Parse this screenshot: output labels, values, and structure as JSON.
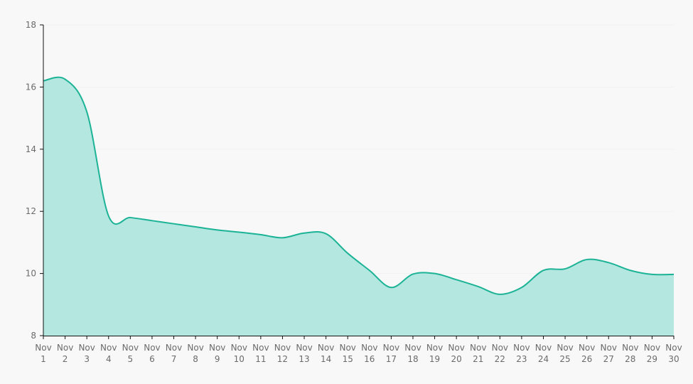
{
  "chart_data": {
    "type": "area",
    "title": "",
    "xlabel": "",
    "ylabel": "",
    "categories": [
      "Nov 1",
      "Nov 2",
      "Nov 3",
      "Nov 4",
      "Nov 5",
      "Nov 6",
      "Nov 7",
      "Nov 8",
      "Nov 9",
      "Nov 10",
      "Nov 11",
      "Nov 12",
      "Nov 13",
      "Nov 14",
      "Nov 15",
      "Nov 16",
      "Nov 17",
      "Nov 18",
      "Nov 19",
      "Nov 20",
      "Nov 21",
      "Nov 22",
      "Nov 23",
      "Nov 24",
      "Nov 25",
      "Nov 26",
      "Nov 27",
      "Nov 28",
      "Nov 29",
      "Nov 30"
    ],
    "series": [
      {
        "values": [
          16.2,
          16.25,
          15.2,
          11.85,
          11.8,
          11.7,
          11.6,
          11.5,
          11.4,
          11.33,
          11.25,
          11.15,
          11.3,
          11.28,
          10.65,
          10.1,
          9.55,
          9.98,
          10.0,
          9.8,
          9.58,
          9.33,
          9.55,
          10.1,
          10.15,
          10.45,
          10.35,
          10.1,
          9.97,
          9.97
        ],
        "color": "#1cb396",
        "fill": "#b4e7df"
      }
    ],
    "ylim": [
      8,
      18
    ],
    "yticks": [
      8,
      10,
      12,
      14,
      16,
      18
    ],
    "grid": true,
    "legend": "none"
  }
}
